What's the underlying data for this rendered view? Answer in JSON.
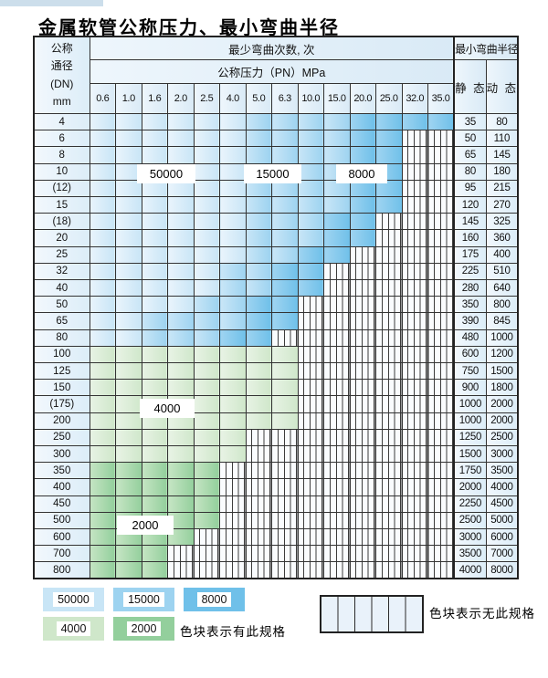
{
  "page": {
    "title": "金属软管公称压力、最小弯曲半径"
  },
  "colors": {
    "b50000": [
      "#e9f4fc",
      "#c8e5f6"
    ],
    "b15000": [
      "#c9e6f7",
      "#9dd3f0"
    ],
    "b8000": [
      "#9fd4f1",
      "#6fc0e9"
    ],
    "g4000": [
      "#e8f3e5",
      "#cfe7ca"
    ],
    "g2000": [
      "#c6e5c4",
      "#93cf9c"
    ],
    "headbg": [
      "#eef6fc",
      "#d9eaf6"
    ],
    "labelcol": [
      "#f2f8fd",
      "#dcedf8"
    ],
    "hatchbg": "#fafcfe",
    "legendhatch": "#e9f2fa",
    "border": "#333333",
    "outer": "#222222",
    "strip": "#ccdeeb"
  },
  "table": {
    "header": {
      "dn_lines": [
        "公称",
        "通径",
        "(DN)",
        "mm"
      ],
      "bend_times": "最少弯曲次数, 次",
      "pressure": "公称压力（PN）MPa",
      "radius": "最小弯曲半径",
      "static_label": "静 态",
      "dynamic_label": "动 态",
      "pressures": [
        "0.6",
        "1.0",
        "1.6",
        "2.0",
        "2.5",
        "4.0",
        "5.0",
        "6.3",
        "10.0",
        "15.0",
        "20.0",
        "25.0",
        "32.0",
        "35.0"
      ]
    },
    "overlays": [
      {
        "text": "50000"
      },
      {
        "text": "15000"
      },
      {
        "text": "8000"
      },
      {
        "text": "4000"
      },
      {
        "text": "2000"
      }
    ],
    "rows": [
      {
        "dn": "4",
        "static": "35",
        "dynamic": "80",
        "cells": [
          [
            "b50000",
            6
          ],
          [
            "b15000",
            4
          ],
          [
            "b8000",
            4
          ]
        ]
      },
      {
        "dn": "6",
        "static": "50",
        "dynamic": "110",
        "cells": [
          [
            "b50000",
            6
          ],
          [
            "b15000",
            4
          ],
          [
            "b8000",
            2
          ]
        ]
      },
      {
        "dn": "8",
        "static": "65",
        "dynamic": "145",
        "cells": [
          [
            "b50000",
            6
          ],
          [
            "b15000",
            4
          ],
          [
            "b8000",
            2
          ]
        ]
      },
      {
        "dn": "10",
        "static": "80",
        "dynamic": "180",
        "cells": [
          [
            "b50000",
            6
          ],
          [
            "b15000",
            4
          ],
          [
            "b8000",
            2
          ]
        ]
      },
      {
        "dn": "(12)",
        "static": "95",
        "dynamic": "215",
        "cells": [
          [
            "b50000",
            6
          ],
          [
            "b15000",
            4
          ],
          [
            "b8000",
            2
          ]
        ]
      },
      {
        "dn": "15",
        "static": "120",
        "dynamic": "270",
        "cells": [
          [
            "b50000",
            6
          ],
          [
            "b15000",
            4
          ],
          [
            "b8000",
            2
          ]
        ]
      },
      {
        "dn": "(18)",
        "static": "145",
        "dynamic": "325",
        "cells": [
          [
            "b50000",
            6
          ],
          [
            "b15000",
            3
          ],
          [
            "b8000",
            2
          ]
        ]
      },
      {
        "dn": "20",
        "static": "160",
        "dynamic": "360",
        "cells": [
          [
            "b50000",
            6
          ],
          [
            "b15000",
            3
          ],
          [
            "b8000",
            2
          ]
        ]
      },
      {
        "dn": "25",
        "static": "175",
        "dynamic": "400",
        "cells": [
          [
            "b50000",
            6
          ],
          [
            "b15000",
            2
          ],
          [
            "b8000",
            2
          ]
        ]
      },
      {
        "dn": "32",
        "static": "225",
        "dynamic": "510",
        "cells": [
          [
            "b50000",
            5
          ],
          [
            "b15000",
            2
          ],
          [
            "b8000",
            2
          ]
        ]
      },
      {
        "dn": "40",
        "static": "280",
        "dynamic": "640",
        "cells": [
          [
            "b50000",
            5
          ],
          [
            "b15000",
            2
          ],
          [
            "b8000",
            2
          ]
        ]
      },
      {
        "dn": "50",
        "static": "350",
        "dynamic": "800",
        "cells": [
          [
            "b50000",
            4
          ],
          [
            "b15000",
            2
          ],
          [
            "b8000",
            2
          ]
        ]
      },
      {
        "dn": "65",
        "static": "390",
        "dynamic": "845",
        "cells": [
          [
            "b50000",
            2
          ],
          [
            "b15000",
            4
          ],
          [
            "b8000",
            2
          ]
        ]
      },
      {
        "dn": "80",
        "static": "480",
        "dynamic": "1000",
        "cells": [
          [
            "b50000",
            2
          ],
          [
            "b15000",
            3
          ],
          [
            "b8000",
            2
          ]
        ]
      },
      {
        "dn": "100",
        "static": "600",
        "dynamic": "1200",
        "cells": [
          [
            "g4000",
            8
          ]
        ]
      },
      {
        "dn": "125",
        "static": "750",
        "dynamic": "1500",
        "cells": [
          [
            "g4000",
            8
          ]
        ]
      },
      {
        "dn": "150",
        "static": "900",
        "dynamic": "1800",
        "cells": [
          [
            "g4000",
            8
          ]
        ]
      },
      {
        "dn": "(175)",
        "static": "1000",
        "dynamic": "2000",
        "cells": [
          [
            "g4000",
            8
          ]
        ]
      },
      {
        "dn": "200",
        "static": "1000",
        "dynamic": "2000",
        "cells": [
          [
            "g4000",
            8
          ]
        ]
      },
      {
        "dn": "250",
        "static": "1250",
        "dynamic": "2500",
        "cells": [
          [
            "g4000",
            6
          ]
        ]
      },
      {
        "dn": "300",
        "static": "1500",
        "dynamic": "3000",
        "cells": [
          [
            "g4000",
            6
          ]
        ]
      },
      {
        "dn": "350",
        "static": "1750",
        "dynamic": "3500",
        "cells": [
          [
            "g2000",
            5
          ]
        ]
      },
      {
        "dn": "400",
        "static": "2000",
        "dynamic": "4000",
        "cells": [
          [
            "g2000",
            5
          ]
        ]
      },
      {
        "dn": "450",
        "static": "2250",
        "dynamic": "4500",
        "cells": [
          [
            "g2000",
            5
          ]
        ]
      },
      {
        "dn": "500",
        "static": "2500",
        "dynamic": "5000",
        "cells": [
          [
            "g2000",
            5
          ]
        ]
      },
      {
        "dn": "600",
        "static": "3000",
        "dynamic": "6000",
        "cells": [
          [
            "g2000",
            4
          ]
        ]
      },
      {
        "dn": "700",
        "static": "3500",
        "dynamic": "7000",
        "cells": [
          [
            "g2000",
            3
          ]
        ]
      },
      {
        "dn": "800",
        "static": "4000",
        "dynamic": "8000",
        "cells": [
          [
            "g2000",
            3
          ]
        ]
      }
    ],
    "columns_total": 14
  },
  "legend": {
    "rows": [
      [
        {
          "value": "50000",
          "tone": "b50000"
        },
        {
          "value": "15000",
          "tone": "b15000"
        },
        {
          "value": "8000",
          "tone": "b8000"
        }
      ],
      [
        {
          "value": "4000",
          "tone": "g4000"
        },
        {
          "value": "2000",
          "tone": "g2000"
        }
      ]
    ],
    "has_spec_note": "色块表示有此规格",
    "no_spec_note": "色块表示无此规格"
  }
}
